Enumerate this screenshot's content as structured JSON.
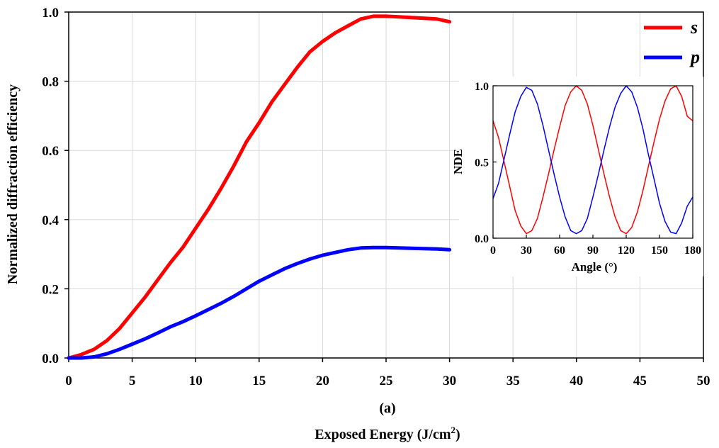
{
  "chart_data": [
    {
      "type": "line",
      "panel_label": "(a)",
      "xlabel_main": "Exposed Energy (J/cm",
      "xlabel_sup": "2",
      "xlabel_close": ")",
      "ylabel": "Normalized diffraction efficiency",
      "xlim": [
        0,
        50
      ],
      "ylim": [
        0,
        1.0
      ],
      "x_ticks": [
        0,
        5,
        10,
        15,
        20,
        25,
        30,
        35,
        40,
        45,
        50
      ],
      "y_ticks": [
        "0.0",
        "0.2",
        "0.4",
        "0.6",
        "0.8",
        "1.0"
      ],
      "grid": true,
      "legend_position": "top-right",
      "series": [
        {
          "name": "s",
          "color": "#ff0000",
          "x": [
            0,
            1,
            2,
            3,
            4,
            5,
            6,
            7,
            8,
            9,
            10,
            11,
            12,
            13,
            14,
            15,
            16,
            17,
            18,
            19,
            20,
            21,
            22,
            23,
            24,
            25,
            26,
            27,
            28,
            29,
            30
          ],
          "y": [
            0.0,
            0.01,
            0.025,
            0.05,
            0.085,
            0.13,
            0.175,
            0.225,
            0.275,
            0.32,
            0.375,
            0.43,
            0.49,
            0.555,
            0.625,
            0.68,
            0.74,
            0.79,
            0.84,
            0.885,
            0.915,
            0.94,
            0.96,
            0.98,
            0.988,
            0.988,
            0.986,
            0.984,
            0.982,
            0.98,
            0.972
          ]
        },
        {
          "name": "p",
          "color": "#0000ff",
          "x": [
            0,
            1,
            2,
            3,
            4,
            5,
            6,
            7,
            8,
            9,
            10,
            11,
            12,
            13,
            14,
            15,
            16,
            17,
            18,
            19,
            20,
            21,
            22,
            23,
            24,
            25,
            26,
            27,
            28,
            29,
            30
          ],
          "y": [
            0.0,
            0.0,
            0.003,
            0.012,
            0.025,
            0.04,
            0.055,
            0.072,
            0.09,
            0.105,
            0.122,
            0.14,
            0.158,
            0.178,
            0.2,
            0.222,
            0.24,
            0.258,
            0.273,
            0.286,
            0.297,
            0.305,
            0.313,
            0.318,
            0.319,
            0.319,
            0.318,
            0.317,
            0.316,
            0.315,
            0.313
          ]
        }
      ]
    },
    {
      "type": "line",
      "xlabel": "Angle (°)",
      "ylabel": "NDE",
      "xlim": [
        0,
        180
      ],
      "ylim": [
        0,
        1.0
      ],
      "x_ticks": [
        0,
        30,
        60,
        90,
        120,
        150,
        180
      ],
      "y_ticks": [
        "0.0",
        "0.5",
        "1.0"
      ],
      "grid": false,
      "series": [
        {
          "color": "#ff0000",
          "x": [
            0,
            5,
            10,
            15,
            20,
            25,
            30,
            35,
            40,
            45,
            50,
            55,
            60,
            65,
            70,
            75,
            80,
            85,
            90,
            95,
            100,
            105,
            110,
            115,
            120,
            125,
            130,
            135,
            140,
            145,
            150,
            155,
            160,
            165,
            170,
            175,
            180
          ],
          "y": [
            0.77,
            0.66,
            0.5,
            0.34,
            0.18,
            0.08,
            0.03,
            0.05,
            0.13,
            0.27,
            0.42,
            0.58,
            0.73,
            0.87,
            0.96,
            1.0,
            0.97,
            0.88,
            0.74,
            0.58,
            0.42,
            0.27,
            0.14,
            0.05,
            0.03,
            0.07,
            0.17,
            0.31,
            0.47,
            0.63,
            0.78,
            0.9,
            0.98,
            1.0,
            0.93,
            0.8,
            0.77
          ]
        },
        {
          "color": "#0000ff",
          "x": [
            0,
            5,
            10,
            15,
            20,
            25,
            30,
            35,
            40,
            45,
            50,
            55,
            60,
            65,
            70,
            75,
            80,
            85,
            90,
            95,
            100,
            105,
            110,
            115,
            120,
            125,
            130,
            135,
            140,
            145,
            150,
            155,
            160,
            165,
            170,
            175,
            180
          ],
          "y": [
            0.26,
            0.36,
            0.52,
            0.68,
            0.83,
            0.93,
            0.99,
            0.97,
            0.88,
            0.74,
            0.58,
            0.42,
            0.27,
            0.14,
            0.05,
            0.03,
            0.05,
            0.13,
            0.27,
            0.42,
            0.58,
            0.73,
            0.86,
            0.95,
            1.0,
            0.96,
            0.86,
            0.72,
            0.55,
            0.39,
            0.23,
            0.11,
            0.04,
            0.03,
            0.1,
            0.21,
            0.27
          ]
        }
      ]
    }
  ]
}
